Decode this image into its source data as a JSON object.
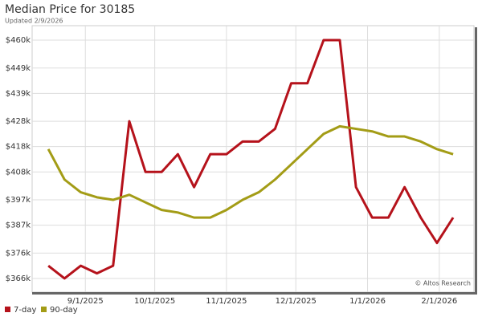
{
  "chart_data": {
    "type": "line",
    "title": "Median Price for 30185",
    "subtitle": "Updated 2/9/2026",
    "annotation": "© Altos Research",
    "x": [
      "2025-08-16",
      "2025-08-23",
      "2025-08-30",
      "2025-09-06",
      "2025-09-13",
      "2025-09-20",
      "2025-09-27",
      "2025-10-04",
      "2025-10-11",
      "2025-10-18",
      "2025-10-25",
      "2025-11-01",
      "2025-11-08",
      "2025-11-15",
      "2025-11-22",
      "2025-11-29",
      "2025-12-06",
      "2025-12-13",
      "2025-12-20",
      "2025-12-27",
      "2026-01-03",
      "2026-01-10",
      "2026-01-17",
      "2026-01-24",
      "2026-01-31",
      "2026-02-07"
    ],
    "series": [
      {
        "name": "7-day",
        "color": "#b5121b",
        "values": [
          371000,
          366000,
          371000,
          368000,
          371000,
          428000,
          408000,
          408000,
          415000,
          402000,
          415000,
          415000,
          420000,
          420000,
          425000,
          443000,
          443000,
          460000,
          460000,
          402000,
          390000,
          390000,
          402000,
          390000,
          380000,
          390000
        ]
      },
      {
        "name": "90-day",
        "color": "#a39c16",
        "values": [
          417000,
          405000,
          400000,
          398000,
          397000,
          399000,
          396000,
          393000,
          392000,
          390000,
          390000,
          393000,
          397000,
          400000,
          405000,
          411000,
          417000,
          423000,
          426000,
          425000,
          424000,
          422000,
          422000,
          420000,
          417000,
          415000
        ]
      }
    ],
    "xlim": [
      "2025-08-09",
      "2026-02-16"
    ],
    "xticks": [
      {
        "value": "2025-09-01",
        "label": "9/1/2025"
      },
      {
        "value": "2025-10-01",
        "label": "10/1/2025"
      },
      {
        "value": "2025-11-01",
        "label": "11/1/2025"
      },
      {
        "value": "2025-12-01",
        "label": "12/1/2025"
      },
      {
        "value": "2026-01-01",
        "label": "1/1/2026"
      },
      {
        "value": "2026-02-01",
        "label": "2/1/2026"
      }
    ],
    "ylim": [
      360600,
      465700
    ],
    "yticks": [
      {
        "value": 366000,
        "label": "$366k"
      },
      {
        "value": 376000,
        "label": "$376k"
      },
      {
        "value": 387000,
        "label": "$387k"
      },
      {
        "value": 397000,
        "label": "$397k"
      },
      {
        "value": 408000,
        "label": "$408k"
      },
      {
        "value": 418000,
        "label": "$418k"
      },
      {
        "value": 428000,
        "label": "$428k"
      },
      {
        "value": 439000,
        "label": "$439k"
      },
      {
        "value": 449000,
        "label": "$449k"
      },
      {
        "value": 460000,
        "label": "$460k"
      }
    ],
    "grid": true,
    "legend": "bottom-left"
  }
}
